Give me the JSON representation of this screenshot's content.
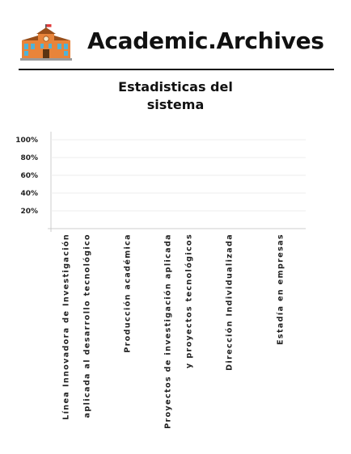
{
  "header": {
    "app_title": "Academic.Archives",
    "logo_icon": "school-building-icon"
  },
  "colors": {
    "brand_orange": "#e8843a",
    "grid": "#ececec",
    "axis": "#cccccc",
    "text": "#111111"
  },
  "chart_data": {
    "type": "bar",
    "title": "Estadisticas del\nsistema",
    "xlabel": "",
    "ylabel": "",
    "y_ticks": [
      "100%",
      "80%",
      "60%",
      "40%",
      "20%"
    ],
    "ylim": [
      0,
      100
    ],
    "grid": true,
    "categories": [
      [
        "Línea Innovadora de Investigación",
        "aplicada al desarrollo tecnológico"
      ],
      [
        "Producción académica"
      ],
      [
        "Proyectos de investigación aplicada",
        "y proyectos tecnológicos"
      ],
      [
        "Dirección Individualizada"
      ],
      [
        "Estadía en empresas"
      ]
    ],
    "values": [
      0,
      0,
      0,
      0,
      0
    ]
  }
}
